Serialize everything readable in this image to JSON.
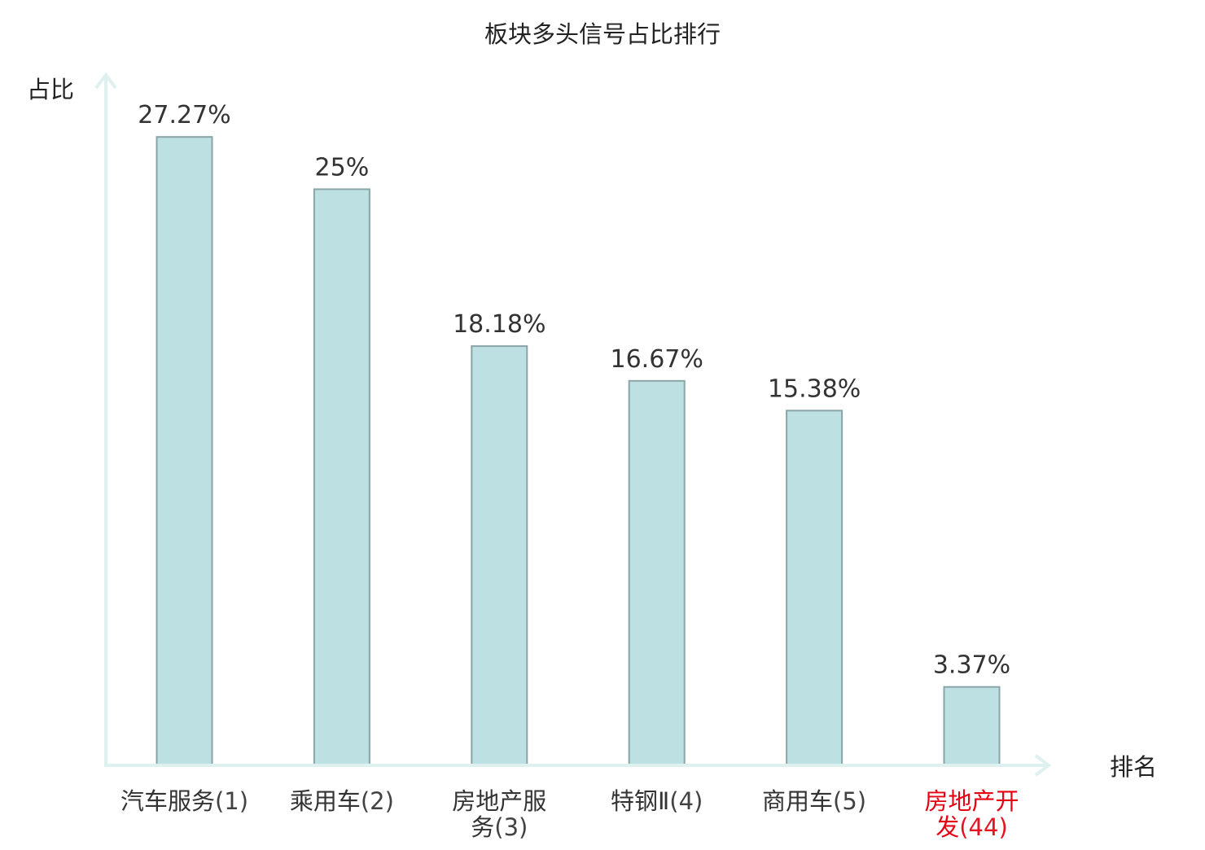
{
  "chart_data": {
    "type": "bar",
    "title": "板块多头信号占比排行",
    "xlabel": "排名",
    "ylabel": "占比",
    "ylim": [
      0,
      30
    ],
    "grid": false,
    "value_suffix": "%",
    "categories": [
      {
        "name": "汽车服务",
        "rank": "(1)",
        "highlight": false
      },
      {
        "name": "乘用车",
        "rank": "(2)",
        "highlight": false
      },
      {
        "name": "房地产服务",
        "rank": "(3)",
        "highlight": false
      },
      {
        "name": "特钢Ⅱ",
        "rank": "(4)",
        "highlight": false
      },
      {
        "name": "商用车",
        "rank": "(5)",
        "highlight": false
      },
      {
        "name": "房地产开发",
        "rank": "(44)",
        "highlight": true
      }
    ],
    "values": [
      27.27,
      25,
      18.18,
      16.67,
      15.38,
      3.37
    ],
    "colors": {
      "bar_fill": "#bde0e2",
      "bar_stroke": "#8aa5a7",
      "axis": "#dff1ef",
      "text": "#333333",
      "highlight_text": "#e60012"
    }
  }
}
